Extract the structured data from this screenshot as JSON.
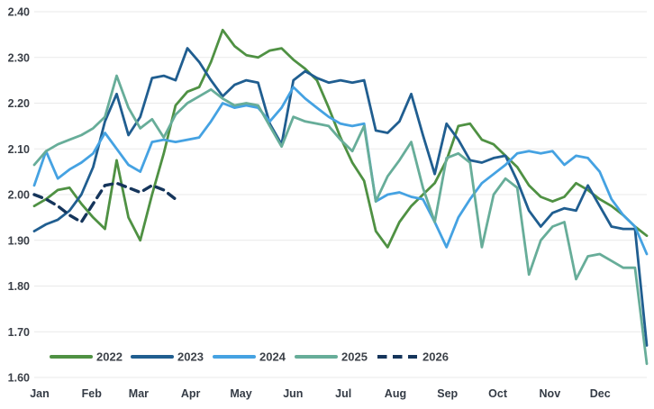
{
  "page": {
    "background": "#ffffff"
  },
  "chart_data": {
    "type": "line",
    "title": "",
    "subtitle": "",
    "x_axis": {
      "unit": "week-of-year",
      "points_per_series": 53,
      "months": [
        "Jan",
        "Feb",
        "Mar",
        "Apr",
        "May",
        "Jun",
        "Jul",
        "Aug",
        "Sep",
        "Oct",
        "Nov",
        "Dec"
      ]
    },
    "y_axis": {
      "min": 1.6,
      "max": 2.4,
      "step": 0.1,
      "tick_labels": [
        "2.40",
        "2.30",
        "2.20",
        "2.10",
        "2.00",
        "1.90",
        "1.80",
        "1.70",
        "1.60"
      ]
    },
    "grid": "horizontal",
    "legend_position": "bottom-left",
    "colors": {
      "grid": "#e9e9e9",
      "axis_text": "#3a3f47",
      "s2022": "#4f9143",
      "s2023": "#205e90",
      "s2024": "#45a2e2",
      "s2025": "#67ad99",
      "s2026": "#15355b"
    },
    "legend": [
      {
        "label": "2022",
        "color": "#4f9143",
        "style": "solid"
      },
      {
        "label": "2023",
        "color": "#205e90",
        "style": "solid"
      },
      {
        "label": "2024",
        "color": "#45a2e2",
        "style": "solid"
      },
      {
        "label": "2025",
        "color": "#67ad99",
        "style": "solid"
      },
      {
        "label": "2026",
        "color": "#15355b",
        "style": "dashed"
      }
    ],
    "series": [
      {
        "name": "2022",
        "color": "#4f9143",
        "style": "solid",
        "values": [
          1.975,
          1.99,
          2.01,
          2.015,
          1.98,
          1.95,
          1.925,
          2.075,
          1.95,
          1.9,
          2.0,
          2.09,
          2.195,
          2.225,
          2.235,
          2.29,
          2.36,
          2.325,
          2.305,
          2.3,
          2.315,
          2.32,
          2.295,
          2.275,
          2.25,
          2.19,
          2.125,
          2.07,
          2.03,
          1.92,
          1.885,
          1.94,
          1.975,
          2.0,
          2.025,
          2.075,
          2.15,
          2.155,
          2.12,
          2.11,
          2.085,
          2.06,
          2.02,
          1.995,
          1.985,
          1.995,
          2.025,
          2.01,
          1.99,
          1.975,
          1.955,
          1.93,
          1.91
        ]
      },
      {
        "name": "2023",
        "color": "#205e90",
        "style": "solid",
        "values": [
          1.92,
          1.935,
          1.945,
          1.965,
          2.0,
          2.06,
          2.16,
          2.22,
          2.13,
          2.17,
          2.255,
          2.26,
          2.25,
          2.32,
          2.29,
          2.25,
          2.215,
          2.24,
          2.25,
          2.245,
          2.155,
          2.11,
          2.25,
          2.27,
          2.255,
          2.245,
          2.25,
          2.245,
          2.25,
          2.14,
          2.135,
          2.16,
          2.22,
          2.13,
          2.045,
          2.155,
          2.12,
          2.075,
          2.07,
          2.08,
          2.085,
          2.03,
          1.965,
          1.93,
          1.96,
          1.97,
          1.965,
          2.02,
          1.975,
          1.93,
          1.925,
          1.925,
          1.67
        ]
      },
      {
        "name": "2024",
        "color": "#45a2e2",
        "style": "solid",
        "values": [
          2.02,
          2.095,
          2.035,
          2.055,
          2.07,
          2.09,
          2.135,
          2.1,
          2.065,
          2.05,
          2.115,
          2.12,
          2.115,
          2.12,
          2.125,
          2.16,
          2.2,
          2.19,
          2.195,
          2.19,
          2.16,
          2.19,
          2.235,
          2.21,
          2.19,
          2.17,
          2.155,
          2.15,
          2.155,
          1.985,
          2.0,
          2.005,
          1.995,
          1.99,
          1.94,
          1.885,
          1.95,
          1.99,
          2.025,
          2.045,
          2.065,
          2.09,
          2.095,
          2.09,
          2.095,
          2.065,
          2.085,
          2.08,
          2.05,
          1.99,
          1.955,
          1.93,
          1.87
        ]
      },
      {
        "name": "2025",
        "color": "#67ad99",
        "style": "solid",
        "values": [
          2.065,
          2.095,
          2.11,
          2.12,
          2.13,
          2.145,
          2.17,
          2.26,
          2.19,
          2.145,
          2.165,
          2.125,
          2.175,
          2.2,
          2.215,
          2.23,
          2.21,
          2.195,
          2.2,
          2.195,
          2.15,
          2.105,
          2.17,
          2.16,
          2.155,
          2.15,
          2.12,
          2.095,
          2.15,
          1.985,
          2.04,
          2.075,
          2.115,
          2.015,
          1.94,
          2.08,
          2.09,
          2.07,
          1.885,
          2.0,
          2.035,
          2.015,
          1.825,
          1.9,
          1.93,
          1.94,
          1.815,
          1.865,
          1.87,
          1.855,
          1.84,
          1.84,
          1.63
        ]
      },
      {
        "name": "2026",
        "color": "#15355b",
        "style": "dashed",
        "values": [
          2.0,
          1.99,
          1.975,
          1.955,
          1.94,
          1.98,
          2.02,
          2.025,
          2.015,
          2.005,
          2.02,
          2.01,
          1.99
        ]
      }
    ]
  }
}
